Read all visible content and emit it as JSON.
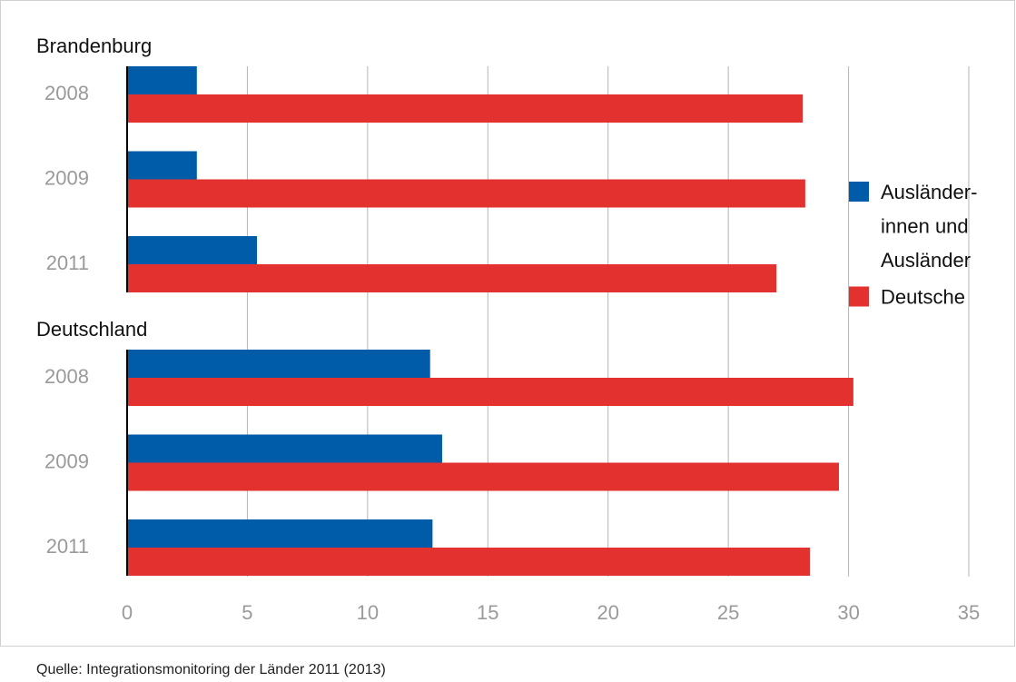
{
  "chart_data": {
    "type": "bar",
    "orientation": "horizontal",
    "xlim": [
      0,
      35
    ],
    "xticks": [
      0,
      5,
      10,
      15,
      20,
      25,
      30,
      35
    ],
    "grid": true,
    "legend_position": "right",
    "series": [
      {
        "name": "Ausländer-innen und Ausländer",
        "color": "#005ca9"
      },
      {
        "name": "Deutsche",
        "color": "#e3312f"
      }
    ],
    "panels": [
      {
        "title": "Brandenburg",
        "categories": [
          "2008",
          "2009",
          "2011"
        ],
        "values": [
          [
            2.9,
            2.9,
            5.4
          ],
          [
            28.1,
            28.2,
            27.0
          ]
        ]
      },
      {
        "title": "Deutschland",
        "categories": [
          "2008",
          "2009",
          "2011"
        ],
        "values": [
          [
            12.6,
            13.1,
            12.7
          ],
          [
            30.2,
            29.6,
            28.4
          ]
        ]
      }
    ],
    "source": "Quelle: Integrationsmonitoring der Länder 2011 (2013)"
  }
}
